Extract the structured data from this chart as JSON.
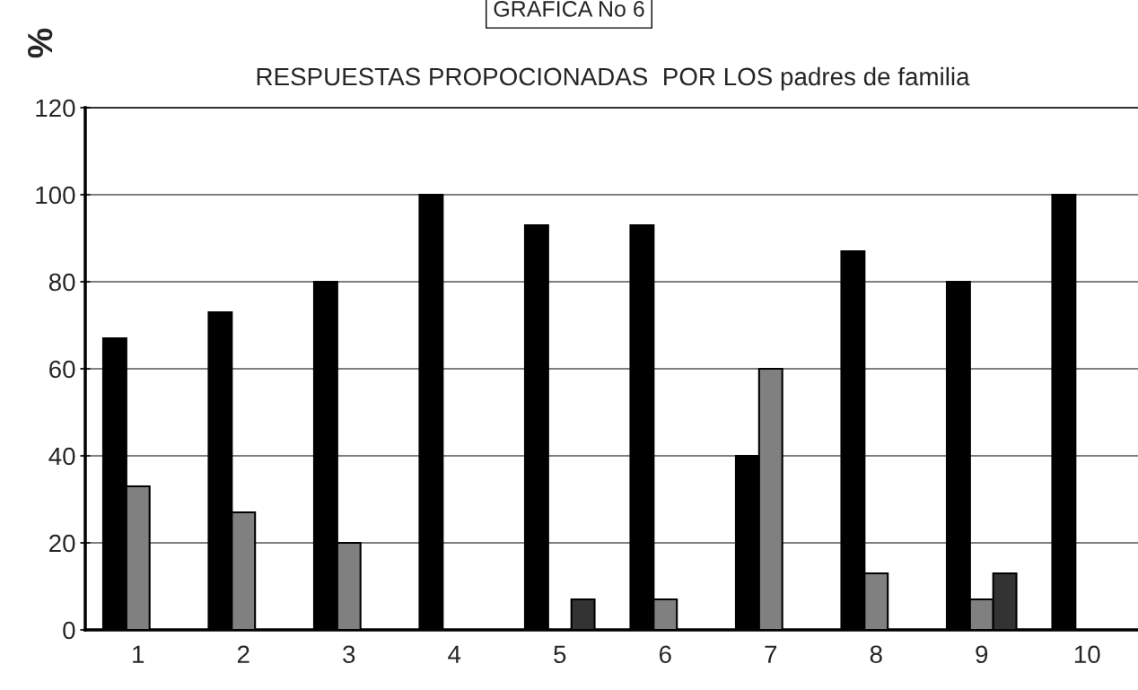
{
  "chart_data": {
    "type": "bar",
    "title": "RESPUESTAS PROPOCIONADAS  POR LOS padres de familia",
    "ylabel": "%",
    "annotations": [
      "GRAFICA No 6"
    ],
    "categories": [
      "1",
      "2",
      "3",
      "4",
      "5",
      "6",
      "7",
      "8",
      "9",
      "10"
    ],
    "series": [
      {
        "color": "#000000",
        "values": [
          67,
          73,
          80,
          100,
          93,
          93,
          40,
          87,
          80,
          100
        ]
      },
      {
        "color": "#808080",
        "values": [
          33,
          27,
          20,
          null,
          null,
          7,
          60,
          13,
          7,
          null
        ]
      },
      {
        "color": "#333333",
        "values": [
          null,
          null,
          null,
          null,
          7,
          null,
          null,
          null,
          13,
          null
        ]
      }
    ],
    "ylim": [
      0,
      120
    ],
    "yticks": [
      0,
      20,
      40,
      60,
      80,
      100,
      120
    ],
    "grid": "y",
    "legend": false
  }
}
